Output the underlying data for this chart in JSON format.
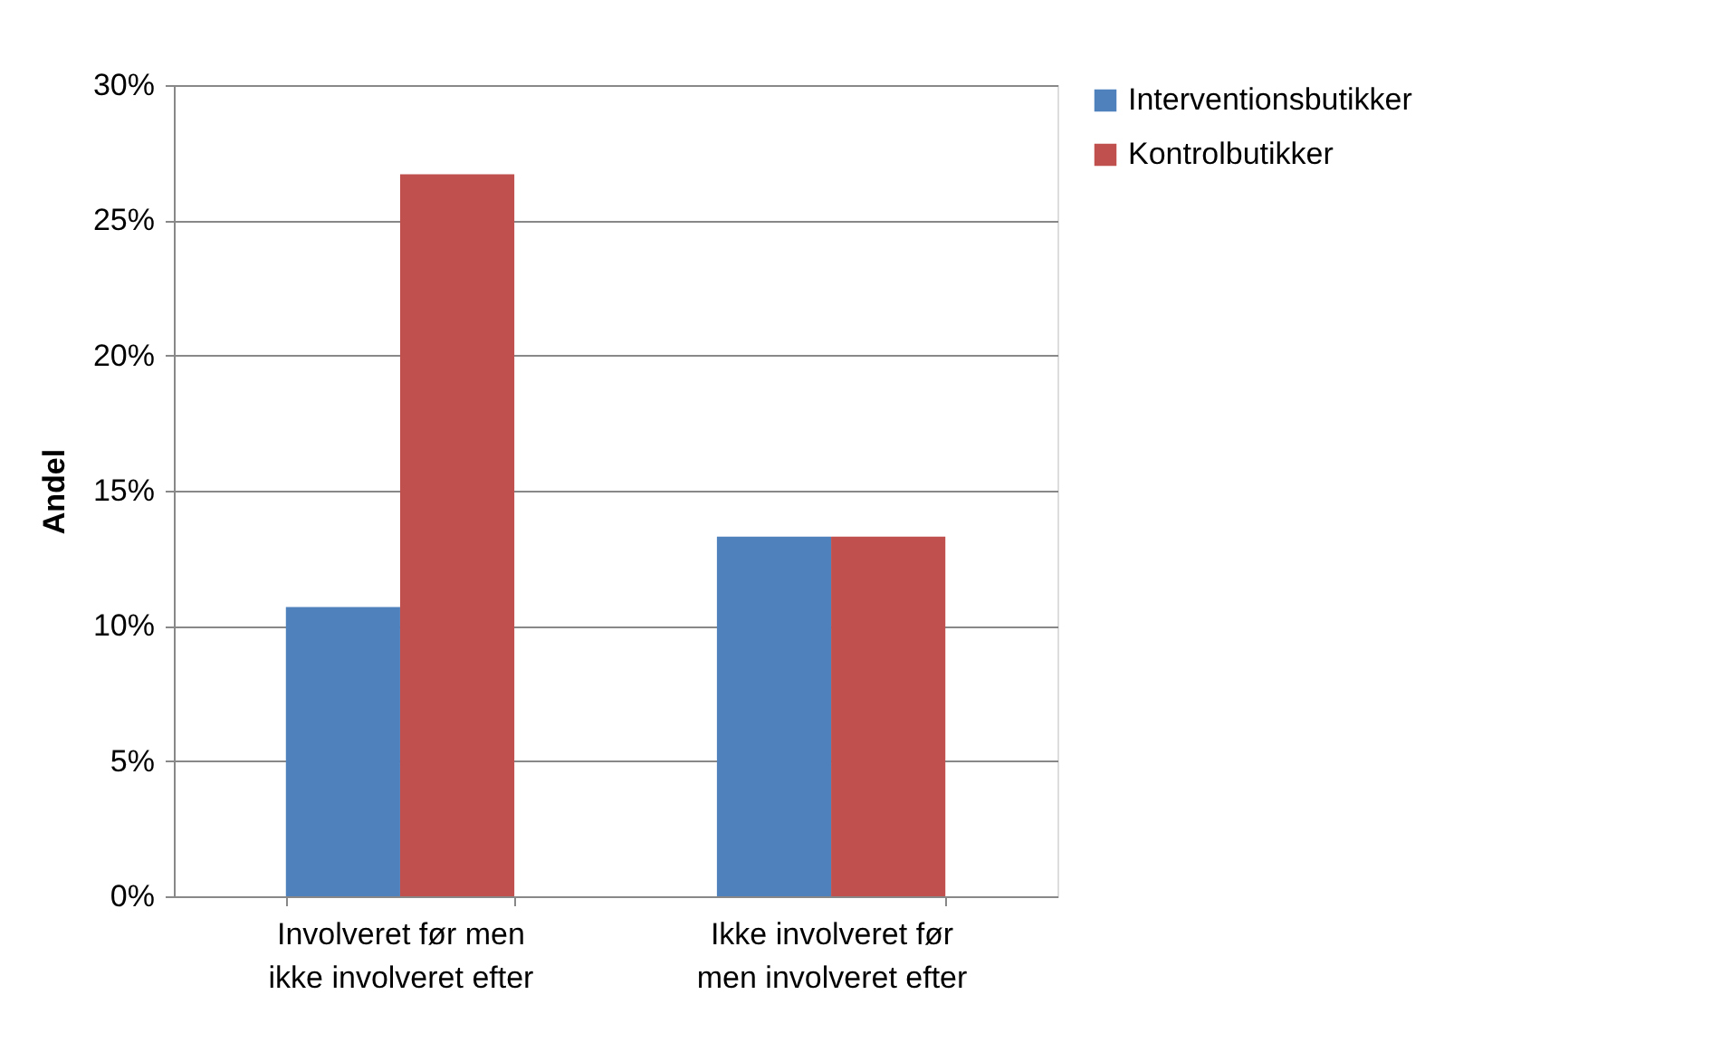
{
  "chart_data": {
    "type": "bar",
    "ylabel": "Andel",
    "categories": [
      "Involveret før men ikke involveret efter",
      "Ikke involveret før men involveret efter"
    ],
    "series": [
      {
        "name": "Interventionsbutikker",
        "color": "#4f81bd",
        "values": [
          10.7,
          13.3
        ]
      },
      {
        "name": "Kontrolbutikker",
        "color": "#c0504d",
        "values": [
          26.7,
          13.3
        ]
      }
    ],
    "ylim": [
      0,
      30
    ],
    "yticks": [
      {
        "value": 0,
        "label": "0%"
      },
      {
        "value": 5,
        "label": "5%"
      },
      {
        "value": 10,
        "label": "10%"
      },
      {
        "value": 15,
        "label": "15%"
      },
      {
        "value": 20,
        "label": "20%"
      },
      {
        "value": 25,
        "label": "25%"
      },
      {
        "value": 30,
        "label": "30%"
      }
    ],
    "grid": "y",
    "legend": "right"
  }
}
